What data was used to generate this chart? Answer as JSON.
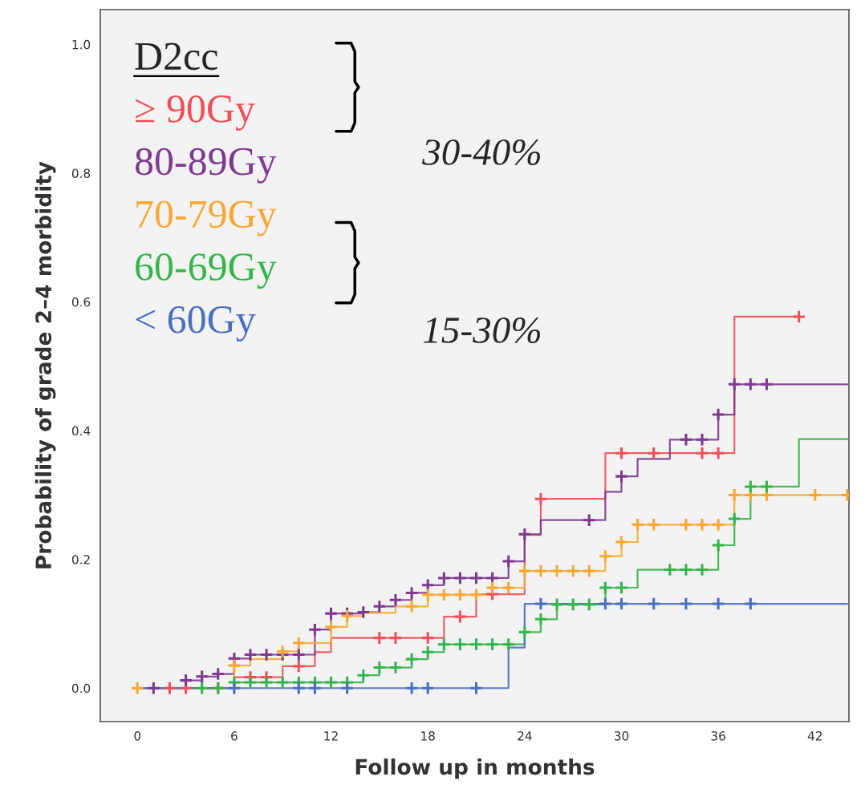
{
  "chart_data": {
    "type": "step",
    "xlabel": "Follow up in months",
    "ylabel": "Probability of grade 2–4 morbidity",
    "legend_title": "D2cc",
    "legend": "top left",
    "grid": false,
    "xlim": [
      -2.3,
      44.1
    ],
    "ylim": [
      -0.052,
      1.054
    ],
    "xticks": [
      0,
      6,
      12,
      18,
      24,
      30,
      36,
      42
    ],
    "yticks": [
      {
        "value": 0,
        "label": "0.0"
      },
      {
        "value": 0.2,
        "label": "0.2"
      },
      {
        "value": 0.4,
        "label": "0.4"
      },
      {
        "value": 0.6,
        "label": "0.6"
      },
      {
        "value": 0.8,
        "label": "0.8"
      },
      {
        "value": 1.0,
        "label": "1.0"
      }
    ],
    "annotations": [
      "30-40%",
      "15-30%"
    ],
    "series": [
      {
        "name": "≥ 90Gy",
        "color": "#f0505a",
        "marker": "none",
        "x": [
          0,
          6,
          9,
          11,
          12,
          19,
          21,
          24,
          25,
          29,
          37,
          41
        ],
        "values": [
          0,
          0.017,
          0.034,
          0.056,
          0.078,
          0.111,
          0.146,
          0.238,
          0.294,
          0.365,
          0.577,
          0.577
        ]
      },
      {
        "name": "80-89Gy",
        "color": "#7e3a8f",
        "marker": "none",
        "x": [
          0,
          3,
          4,
          5,
          6,
          7,
          11,
          12,
          14,
          15,
          16,
          17,
          18,
          19,
          23,
          24,
          25,
          29,
          30,
          31,
          33,
          36,
          37,
          44
        ],
        "values": [
          0,
          0.012,
          0.018,
          0.022,
          0.046,
          0.052,
          0.091,
          0.116,
          0.118,
          0.127,
          0.137,
          0.148,
          0.16,
          0.171,
          0.197,
          0.239,
          0.261,
          0.305,
          0.329,
          0.356,
          0.386,
          0.425,
          0.472,
          0.472
        ]
      },
      {
        "name": "70-79Gy",
        "color": "#f9a832",
        "marker": "none",
        "x": [
          0,
          6,
          7,
          9,
          10,
          12,
          13,
          14,
          16,
          18,
          22,
          24,
          29,
          30,
          31,
          37,
          44
        ],
        "values": [
          0,
          0.035,
          0.045,
          0.057,
          0.07,
          0.095,
          0.112,
          0.117,
          0.127,
          0.145,
          0.156,
          0.182,
          0.205,
          0.227,
          0.254,
          0.3,
          0.3
        ]
      },
      {
        "name": "60-69Gy",
        "color": "#35b54a",
        "marker": "none",
        "x": [
          0,
          6,
          14,
          15,
          17,
          18,
          19,
          24,
          25,
          26,
          29,
          31,
          36,
          37,
          38,
          41,
          44
        ],
        "values": [
          0,
          0.009,
          0.02,
          0.032,
          0.045,
          0.056,
          0.068,
          0.087,
          0.107,
          0.13,
          0.156,
          0.184,
          0.222,
          0.263,
          0.313,
          0.387,
          0.387
        ]
      },
      {
        "name": "< 60Gy",
        "color": "#4a6fc1",
        "marker": "none",
        "x": [
          0,
          23,
          24,
          44
        ],
        "values": [
          0,
          0.063,
          0.131,
          0.131
        ]
      },
      {
        "type": "scatter",
        "color": "#f0505a",
        "marker": "cross",
        "x": [
          2,
          3,
          5,
          7,
          8,
          10,
          15,
          16,
          18,
          20,
          22,
          25,
          30,
          32,
          35,
          36,
          41
        ],
        "values": [
          0,
          0,
          0,
          0.017,
          0.017,
          0.034,
          0.078,
          0.078,
          0.078,
          0.111,
          0.146,
          0.294,
          0.365,
          0.365,
          0.365,
          0.365,
          0.577
        ]
      },
      {
        "type": "scatter",
        "color": "#7e3a8f",
        "marker": "cross",
        "x": [
          1,
          3,
          4,
          5,
          6,
          7,
          8,
          9,
          10,
          11,
          12,
          13,
          14,
          15,
          16,
          17,
          18,
          19,
          20,
          21,
          22,
          23,
          24,
          28,
          30,
          34,
          35,
          36,
          37,
          38,
          39
        ],
        "values": [
          0,
          0.012,
          0.018,
          0.022,
          0.046,
          0.052,
          0.052,
          0.052,
          0.052,
          0.091,
          0.116,
          0.116,
          0.118,
          0.127,
          0.137,
          0.148,
          0.16,
          0.171,
          0.171,
          0.171,
          0.171,
          0.197,
          0.239,
          0.261,
          0.329,
          0.386,
          0.386,
          0.425,
          0.472,
          0.472,
          0.472
        ]
      },
      {
        "type": "scatter",
        "color": "#f9a832",
        "marker": "cross",
        "x": [
          0,
          6,
          9,
          10,
          12,
          13,
          17,
          18,
          19,
          20,
          21,
          22,
          23,
          24,
          25,
          26,
          27,
          28,
          29,
          30,
          31,
          32,
          34,
          35,
          36,
          37,
          38,
          39,
          42,
          44
        ],
        "values": [
          0,
          0.035,
          0.057,
          0.07,
          0.095,
          0.112,
          0.127,
          0.145,
          0.145,
          0.145,
          0.145,
          0.156,
          0.156,
          0.182,
          0.182,
          0.182,
          0.182,
          0.182,
          0.205,
          0.227,
          0.254,
          0.254,
          0.254,
          0.254,
          0.254,
          0.3,
          0.3,
          0.3,
          0.3,
          0.3
        ]
      },
      {
        "type": "scatter",
        "color": "#35b54a",
        "marker": "cross",
        "x": [
          4,
          5,
          6,
          7,
          8,
          9,
          10,
          11,
          12,
          13,
          14,
          15,
          16,
          17,
          18,
          19,
          20,
          21,
          22,
          23,
          24,
          25,
          26,
          27,
          28,
          29,
          30,
          33,
          34,
          35,
          36,
          37,
          38,
          39
        ],
        "values": [
          0,
          0,
          0.009,
          0.009,
          0.009,
          0.009,
          0.009,
          0.009,
          0.009,
          0.009,
          0.02,
          0.032,
          0.032,
          0.045,
          0.056,
          0.068,
          0.068,
          0.068,
          0.068,
          0.068,
          0.087,
          0.107,
          0.13,
          0.13,
          0.13,
          0.156,
          0.156,
          0.184,
          0.184,
          0.184,
          0.222,
          0.263,
          0.313,
          0.313
        ]
      },
      {
        "type": "scatter",
        "color": "#4a6fc1",
        "marker": "cross",
        "x": [
          6,
          10,
          11,
          13,
          17,
          18,
          21,
          25,
          29,
          30,
          32,
          34,
          36,
          38
        ],
        "values": [
          0,
          0,
          0,
          0,
          0,
          0,
          0,
          0.131,
          0.131,
          0.131,
          0.131,
          0.131,
          0.131,
          0.131
        ]
      }
    ]
  }
}
